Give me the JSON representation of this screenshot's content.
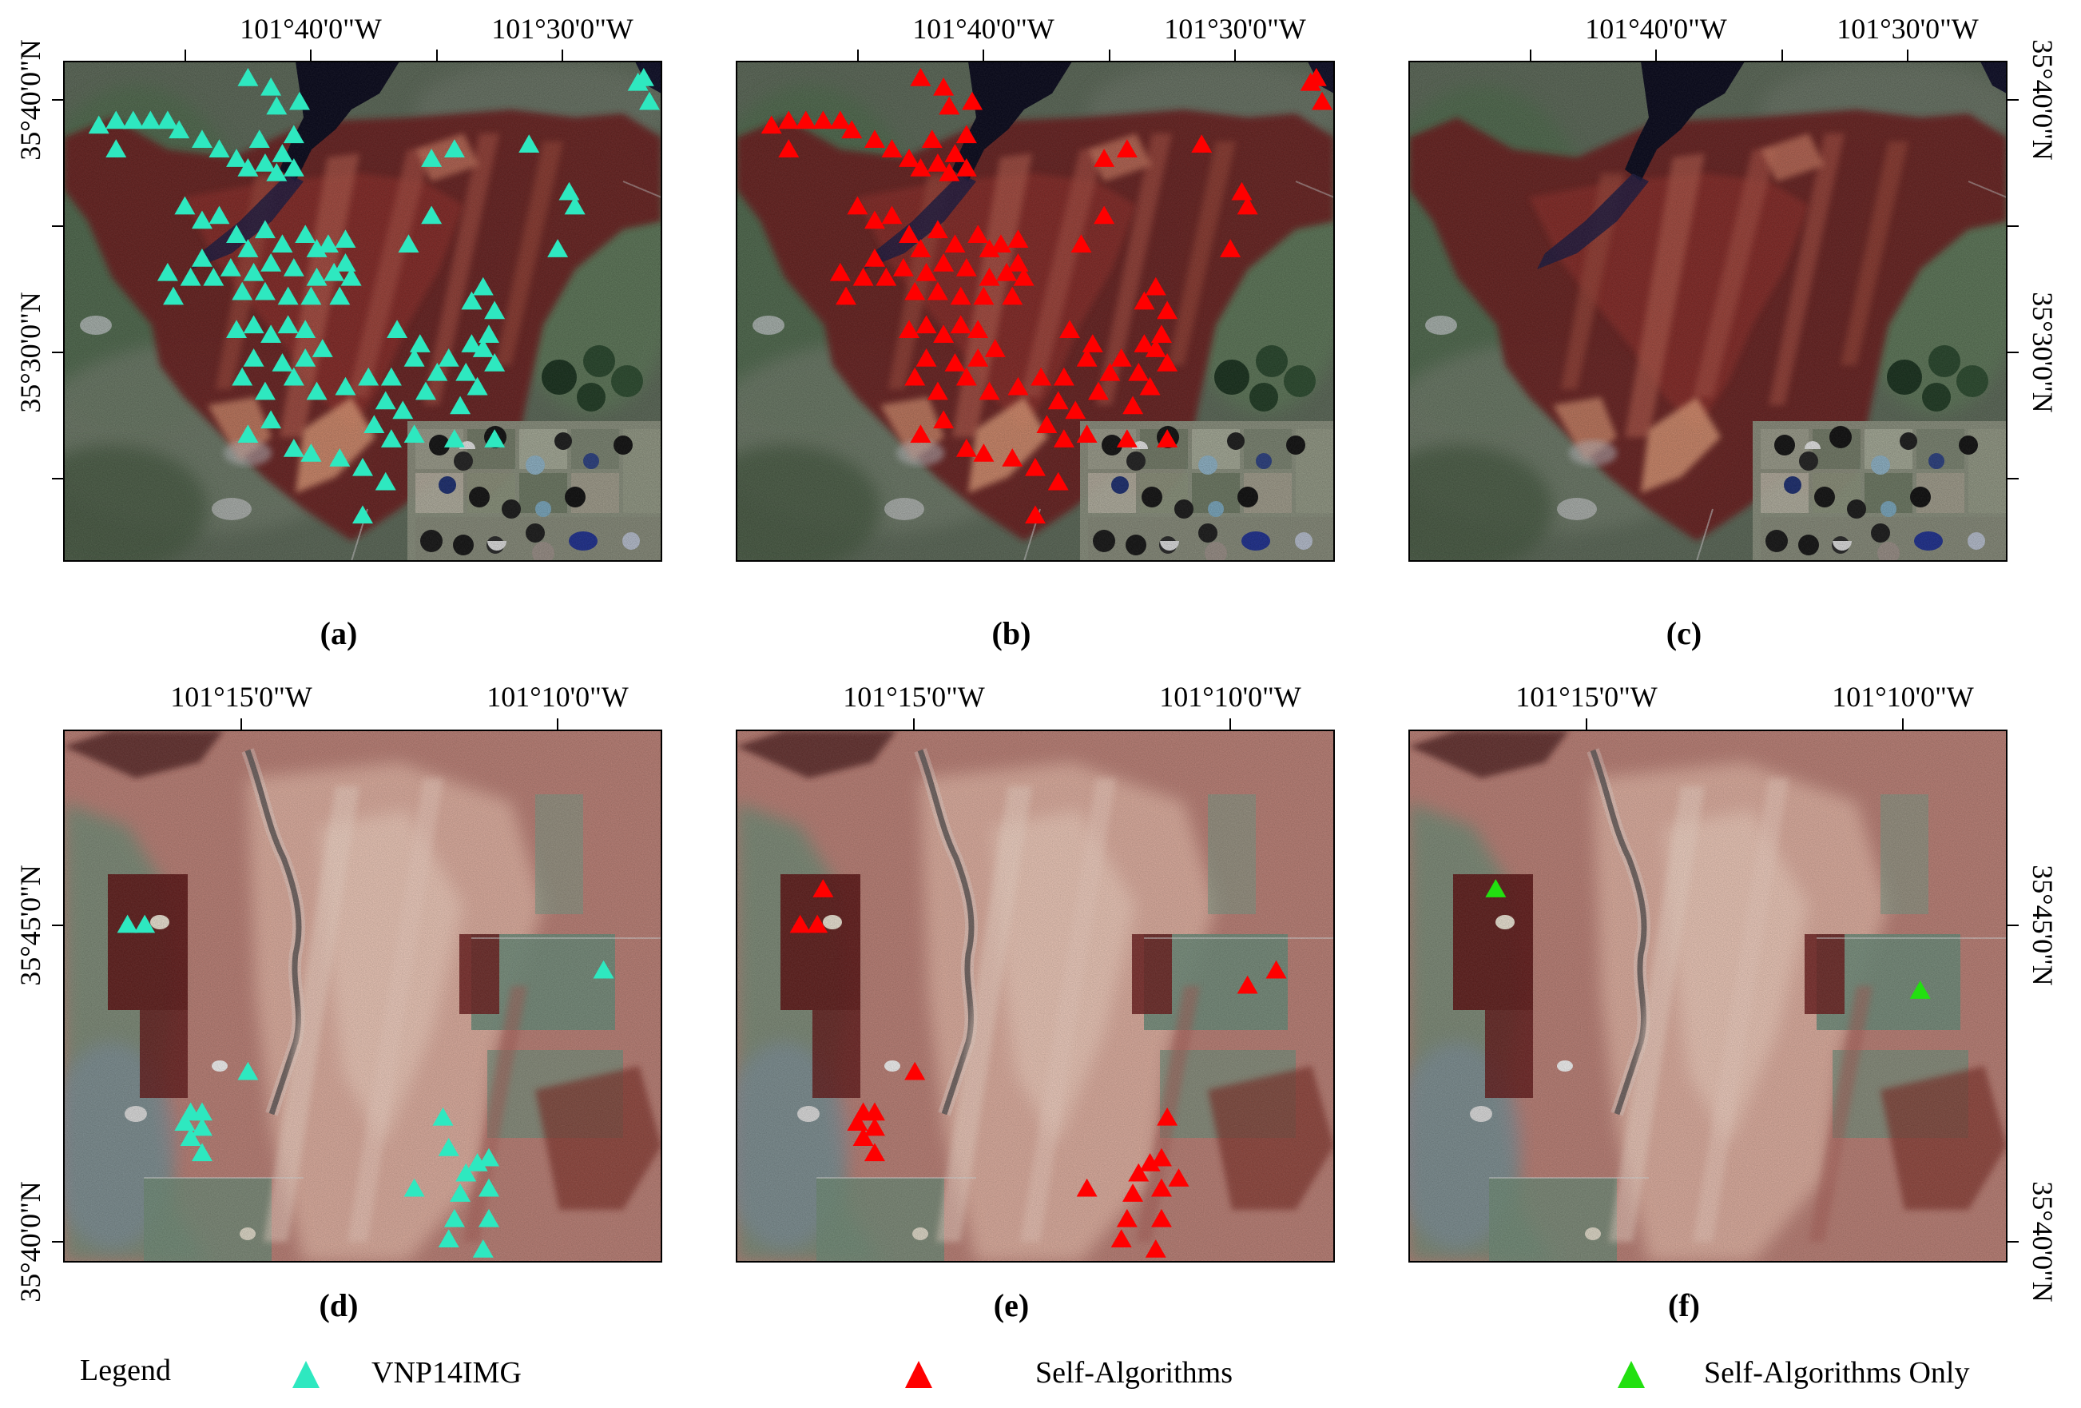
{
  "colors": {
    "vnp14img": "#2ee8c0",
    "self_algorithms": "#ff0000",
    "self_algorithms_only": "#22e010"
  },
  "panels": [
    {
      "id": "a",
      "caption": "(a)",
      "row": "top",
      "marker": "vnp14img",
      "markers": "top_vnp"
    },
    {
      "id": "b",
      "caption": "(b)",
      "row": "top",
      "marker": "self_algorithms",
      "markers": "top_self"
    },
    {
      "id": "c",
      "caption": "(c)",
      "row": "top",
      "marker": "self_algorithms_only",
      "markers": "top_only"
    },
    {
      "id": "d",
      "caption": "(d)",
      "row": "bottom",
      "marker": "vnp14img",
      "markers": "bottom_vnp"
    },
    {
      "id": "e",
      "caption": "(e)",
      "row": "bottom",
      "marker": "self_algorithms",
      "markers": "bottom_self"
    },
    {
      "id": "f",
      "caption": "(f)",
      "row": "bottom",
      "marker": "self_algorithms_only",
      "markers": "bottom_only"
    }
  ],
  "axes": {
    "top": {
      "lon_labels": [
        "101°40'0\"W",
        "101°30'0\"W"
      ],
      "lat_labels": [
        "35°40'0\"N",
        "35°30'0\"N"
      ]
    },
    "bottom": {
      "lon_labels": [
        "101°15'0\"W",
        "101°10'0\"W"
      ],
      "lat_labels": [
        "35°45'0\"N",
        "35°40'0\"N"
      ]
    }
  },
  "legend": {
    "title": "Legend",
    "items": [
      {
        "label": "VNP14IMG",
        "marker": "vnp14img"
      },
      {
        "label": "Self-Algorithms",
        "marker": "self_algorithms"
      },
      {
        "label": "Self-Algorithms Only",
        "marker": "self_algorithms_only"
      }
    ]
  },
  "fire_detections": {
    "top_vnp": [
      [
        0.04,
        0.11
      ],
      [
        0.07,
        0.1
      ],
      [
        0.1,
        0.1
      ],
      [
        0.13,
        0.1
      ],
      [
        0.16,
        0.1
      ],
      [
        0.18,
        0.12
      ],
      [
        0.07,
        0.16
      ],
      [
        0.22,
        0.14
      ],
      [
        0.25,
        0.16
      ],
      [
        0.28,
        0.18
      ],
      [
        0.3,
        0.2
      ],
      [
        0.33,
        0.19
      ],
      [
        0.36,
        0.17
      ],
      [
        0.35,
        0.21
      ],
      [
        0.38,
        0.2
      ],
      [
        0.32,
        0.14
      ],
      [
        0.3,
        0.01
      ],
      [
        0.34,
        0.03
      ],
      [
        0.35,
        0.07
      ],
      [
        0.39,
        0.06
      ],
      [
        0.38,
        0.13
      ],
      [
        0.19,
        0.28
      ],
      [
        0.22,
        0.31
      ],
      [
        0.25,
        0.3
      ],
      [
        0.28,
        0.34
      ],
      [
        0.3,
        0.37
      ],
      [
        0.33,
        0.33
      ],
      [
        0.36,
        0.36
      ],
      [
        0.4,
        0.34
      ],
      [
        0.42,
        0.37
      ],
      [
        0.44,
        0.36
      ],
      [
        0.47,
        0.35
      ],
      [
        0.47,
        0.4
      ],
      [
        0.45,
        0.42
      ],
      [
        0.42,
        0.43
      ],
      [
        0.38,
        0.41
      ],
      [
        0.34,
        0.4
      ],
      [
        0.31,
        0.42
      ],
      [
        0.27,
        0.41
      ],
      [
        0.22,
        0.39
      ],
      [
        0.2,
        0.43
      ],
      [
        0.16,
        0.42
      ],
      [
        0.17,
        0.47
      ],
      [
        0.24,
        0.43
      ],
      [
        0.29,
        0.46
      ],
      [
        0.33,
        0.46
      ],
      [
        0.37,
        0.47
      ],
      [
        0.41,
        0.47
      ],
      [
        0.46,
        0.47
      ],
      [
        0.48,
        0.43
      ],
      [
        0.28,
        0.54
      ],
      [
        0.31,
        0.53
      ],
      [
        0.34,
        0.55
      ],
      [
        0.37,
        0.53
      ],
      [
        0.4,
        0.54
      ],
      [
        0.43,
        0.58
      ],
      [
        0.4,
        0.6
      ],
      [
        0.36,
        0.61
      ],
      [
        0.31,
        0.6
      ],
      [
        0.29,
        0.64
      ],
      [
        0.33,
        0.67
      ],
      [
        0.38,
        0.64
      ],
      [
        0.42,
        0.67
      ],
      [
        0.47,
        0.66
      ],
      [
        0.51,
        0.64
      ],
      [
        0.56,
        0.54
      ],
      [
        0.6,
        0.57
      ],
      [
        0.59,
        0.6
      ],
      [
        0.55,
        0.64
      ],
      [
        0.61,
        0.67
      ],
      [
        0.63,
        0.63
      ],
      [
        0.65,
        0.6
      ],
      [
        0.68,
        0.63
      ],
      [
        0.69,
        0.57
      ],
      [
        0.72,
        0.55
      ],
      [
        0.71,
        0.58
      ],
      [
        0.73,
        0.61
      ],
      [
        0.7,
        0.66
      ],
      [
        0.67,
        0.7
      ],
      [
        0.57,
        0.71
      ],
      [
        0.54,
        0.69
      ],
      [
        0.52,
        0.74
      ],
      [
        0.55,
        0.77
      ],
      [
        0.59,
        0.76
      ],
      [
        0.66,
        0.77
      ],
      [
        0.73,
        0.77
      ],
      [
        0.3,
        0.76
      ],
      [
        0.34,
        0.73
      ],
      [
        0.38,
        0.79
      ],
      [
        0.41,
        0.8
      ],
      [
        0.46,
        0.81
      ],
      [
        0.5,
        0.83
      ],
      [
        0.54,
        0.86
      ],
      [
        0.5,
        0.93
      ],
      [
        0.69,
        0.48
      ],
      [
        0.73,
        0.5
      ],
      [
        0.71,
        0.45
      ],
      [
        0.79,
        0.15
      ],
      [
        0.86,
        0.25
      ],
      [
        0.87,
        0.28
      ],
      [
        0.84,
        0.37
      ],
      [
        0.99,
        0.01
      ],
      [
        0.98,
        0.02
      ],
      [
        1.0,
        0.06
      ],
      [
        0.58,
        0.36
      ],
      [
        0.62,
        0.3
      ],
      [
        0.62,
        0.18
      ],
      [
        0.66,
        0.16
      ]
    ],
    "top_self": [
      [
        0.04,
        0.11
      ],
      [
        0.07,
        0.1
      ],
      [
        0.1,
        0.1
      ],
      [
        0.13,
        0.1
      ],
      [
        0.16,
        0.1
      ],
      [
        0.18,
        0.12
      ],
      [
        0.07,
        0.16
      ],
      [
        0.22,
        0.14
      ],
      [
        0.25,
        0.16
      ],
      [
        0.28,
        0.18
      ],
      [
        0.3,
        0.2
      ],
      [
        0.33,
        0.19
      ],
      [
        0.36,
        0.17
      ],
      [
        0.35,
        0.21
      ],
      [
        0.38,
        0.2
      ],
      [
        0.32,
        0.14
      ],
      [
        0.3,
        0.01
      ],
      [
        0.34,
        0.03
      ],
      [
        0.35,
        0.07
      ],
      [
        0.39,
        0.06
      ],
      [
        0.38,
        0.13
      ],
      [
        0.19,
        0.28
      ],
      [
        0.22,
        0.31
      ],
      [
        0.25,
        0.3
      ],
      [
        0.28,
        0.34
      ],
      [
        0.3,
        0.37
      ],
      [
        0.33,
        0.33
      ],
      [
        0.36,
        0.36
      ],
      [
        0.4,
        0.34
      ],
      [
        0.42,
        0.37
      ],
      [
        0.44,
        0.36
      ],
      [
        0.47,
        0.35
      ],
      [
        0.47,
        0.4
      ],
      [
        0.45,
        0.42
      ],
      [
        0.42,
        0.43
      ],
      [
        0.38,
        0.41
      ],
      [
        0.34,
        0.4
      ],
      [
        0.31,
        0.42
      ],
      [
        0.27,
        0.41
      ],
      [
        0.22,
        0.39
      ],
      [
        0.2,
        0.43
      ],
      [
        0.16,
        0.42
      ],
      [
        0.17,
        0.47
      ],
      [
        0.24,
        0.43
      ],
      [
        0.29,
        0.46
      ],
      [
        0.33,
        0.46
      ],
      [
        0.37,
        0.47
      ],
      [
        0.41,
        0.47
      ],
      [
        0.46,
        0.47
      ],
      [
        0.48,
        0.43
      ],
      [
        0.28,
        0.54
      ],
      [
        0.31,
        0.53
      ],
      [
        0.34,
        0.55
      ],
      [
        0.37,
        0.53
      ],
      [
        0.4,
        0.54
      ],
      [
        0.43,
        0.58
      ],
      [
        0.4,
        0.6
      ],
      [
        0.36,
        0.61
      ],
      [
        0.31,
        0.6
      ],
      [
        0.29,
        0.64
      ],
      [
        0.33,
        0.67
      ],
      [
        0.38,
        0.64
      ],
      [
        0.42,
        0.67
      ],
      [
        0.47,
        0.66
      ],
      [
        0.51,
        0.64
      ],
      [
        0.56,
        0.54
      ],
      [
        0.6,
        0.57
      ],
      [
        0.59,
        0.6
      ],
      [
        0.55,
        0.64
      ],
      [
        0.61,
        0.67
      ],
      [
        0.63,
        0.63
      ],
      [
        0.65,
        0.6
      ],
      [
        0.68,
        0.63
      ],
      [
        0.69,
        0.57
      ],
      [
        0.72,
        0.55
      ],
      [
        0.71,
        0.58
      ],
      [
        0.73,
        0.61
      ],
      [
        0.7,
        0.66
      ],
      [
        0.67,
        0.7
      ],
      [
        0.57,
        0.71
      ],
      [
        0.54,
        0.69
      ],
      [
        0.52,
        0.74
      ],
      [
        0.55,
        0.77
      ],
      [
        0.59,
        0.76
      ],
      [
        0.66,
        0.77
      ],
      [
        0.73,
        0.77
      ],
      [
        0.3,
        0.76
      ],
      [
        0.34,
        0.73
      ],
      [
        0.38,
        0.79
      ],
      [
        0.41,
        0.8
      ],
      [
        0.46,
        0.81
      ],
      [
        0.5,
        0.83
      ],
      [
        0.54,
        0.86
      ],
      [
        0.5,
        0.93
      ],
      [
        0.69,
        0.48
      ],
      [
        0.73,
        0.5
      ],
      [
        0.71,
        0.45
      ],
      [
        0.79,
        0.15
      ],
      [
        0.86,
        0.25
      ],
      [
        0.87,
        0.28
      ],
      [
        0.84,
        0.37
      ],
      [
        0.99,
        0.01
      ],
      [
        0.98,
        0.02
      ],
      [
        1.0,
        0.06
      ],
      [
        0.58,
        0.36
      ],
      [
        0.62,
        0.3
      ],
      [
        0.62,
        0.18
      ],
      [
        0.66,
        0.16
      ]
    ],
    "top_only": [],
    "bottom_vnp": [
      [
        0.09,
        0.36
      ],
      [
        0.12,
        0.36
      ],
      [
        0.3,
        0.65
      ],
      [
        0.2,
        0.73
      ],
      [
        0.22,
        0.73
      ],
      [
        0.19,
        0.75
      ],
      [
        0.22,
        0.76
      ],
      [
        0.2,
        0.78
      ],
      [
        0.22,
        0.81
      ],
      [
        0.64,
        0.74
      ],
      [
        0.7,
        0.83
      ],
      [
        0.72,
        0.82
      ],
      [
        0.65,
        0.8
      ],
      [
        0.68,
        0.85
      ],
      [
        0.67,
        0.89
      ],
      [
        0.72,
        0.88
      ],
      [
        0.66,
        0.94
      ],
      [
        0.72,
        0.94
      ],
      [
        0.65,
        0.98
      ],
      [
        0.71,
        1.0
      ],
      [
        0.59,
        0.88
      ],
      [
        0.92,
        0.45
      ]
    ],
    "bottom_self": [
      [
        0.09,
        0.36
      ],
      [
        0.12,
        0.36
      ],
      [
        0.13,
        0.29
      ],
      [
        0.29,
        0.65
      ],
      [
        0.2,
        0.73
      ],
      [
        0.22,
        0.73
      ],
      [
        0.19,
        0.75
      ],
      [
        0.22,
        0.76
      ],
      [
        0.2,
        0.78
      ],
      [
        0.22,
        0.81
      ],
      [
        0.73,
        0.74
      ],
      [
        0.7,
        0.83
      ],
      [
        0.72,
        0.82
      ],
      [
        0.75,
        0.86
      ],
      [
        0.68,
        0.85
      ],
      [
        0.67,
        0.89
      ],
      [
        0.72,
        0.88
      ],
      [
        0.66,
        0.94
      ],
      [
        0.72,
        0.94
      ],
      [
        0.65,
        0.98
      ],
      [
        0.71,
        1.0
      ],
      [
        0.59,
        0.88
      ],
      [
        0.87,
        0.48
      ],
      [
        0.92,
        0.45
      ]
    ],
    "bottom_only": [
      [
        0.13,
        0.29
      ],
      [
        0.87,
        0.49
      ]
    ]
  }
}
